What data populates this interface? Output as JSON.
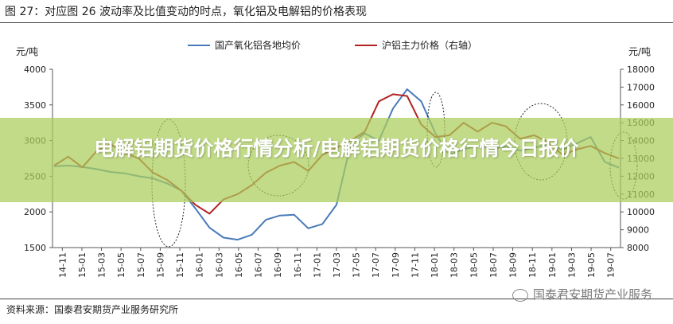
{
  "figure": {
    "title": "图 27：对应图 26 波动率及比值变动的时点，氧化铝及电解铝的价格表现",
    "source": "资料来源：国泰君安期货产业服务研究所",
    "watermark": "国泰君安期货产业服务",
    "banner": "电解铝期货价格行情分析/电解铝期货价格行情今日报价"
  },
  "chart_data": {
    "type": "line",
    "x_labels": [
      "14-11",
      "15-01",
      "15-03",
      "15-05",
      "15-07",
      "15-09",
      "15-11",
      "16-01",
      "16-03",
      "16-05",
      "16-07",
      "16-09",
      "16-11",
      "17-01",
      "17-03",
      "17-05",
      "17-07",
      "17-09",
      "17-11",
      "18-01",
      "18-03",
      "18-05",
      "18-07",
      "18-09",
      "18-11",
      "19-01",
      "19-03",
      "19-05",
      "19-07"
    ],
    "left_axis": {
      "unit": "元/吨",
      "min": 1500,
      "max": 4000,
      "ticks": [
        1500,
        2000,
        2500,
        3000,
        3500,
        4000
      ]
    },
    "right_axis": {
      "unit": "元/吨",
      "min": 8000,
      "max": 18000,
      "ticks": [
        8000,
        9000,
        10000,
        11000,
        12000,
        13000,
        14000,
        15000,
        16000,
        17000,
        18000
      ]
    },
    "grid": false,
    "legend_position": "top",
    "series": [
      {
        "name": "国产氧化铝各地均价",
        "axis": "left",
        "color": "#4a7ab8",
        "values": [
          2640,
          2650,
          2630,
          2600,
          2560,
          2540,
          2500,
          2470,
          2400,
          2300,
          2050,
          1780,
          1640,
          1610,
          1680,
          1890,
          1950,
          1960,
          1770,
          1830,
          2100,
          2950,
          3100,
          3000,
          3450,
          3720,
          3550,
          3100,
          2800,
          2880,
          2930,
          2880,
          2920,
          2860,
          2900,
          2950,
          2870,
          2960,
          3050,
          2700,
          2620
        ]
      },
      {
        "name": "沪铝主力价格（右轴）",
        "axis": "right",
        "color": "#b22222",
        "values": [
          12600,
          13100,
          12500,
          13400,
          13800,
          13300,
          13000,
          12200,
          11800,
          11200,
          10400,
          9900,
          10700,
          11000,
          11500,
          12200,
          12600,
          12800,
          12300,
          13200,
          13600,
          14000,
          14500,
          16200,
          16600,
          16500,
          14900,
          14200,
          14300,
          15000,
          14500,
          15000,
          14800,
          14100,
          14300,
          13900,
          13200,
          13500,
          13700,
          13300,
          13000
        ]
      }
    ],
    "annotations": "dashed ellipses marking inflection periods"
  }
}
